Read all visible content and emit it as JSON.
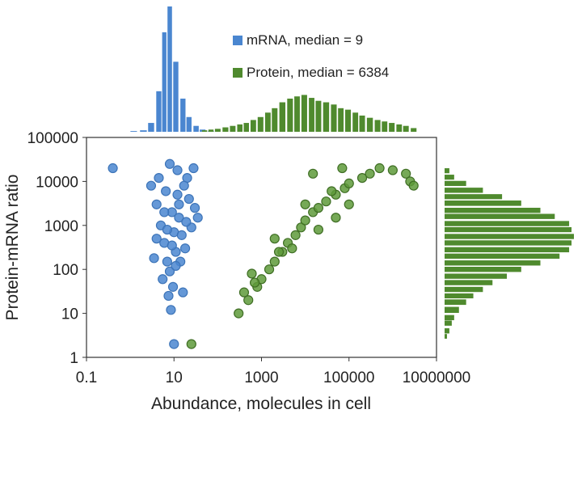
{
  "chart_data": {
    "type": "scatter",
    "xlabel": "Abundance, molecules in cell",
    "ylabel": "Protein-mRNA ratio",
    "xscale": "log",
    "yscale": "log",
    "xlim": [
      0.1,
      10000000
    ],
    "ylim": [
      1,
      100000
    ],
    "x_ticks": [
      "0.1",
      "10",
      "1000",
      "100000",
      "10000000"
    ],
    "y_ticks": [
      "1",
      "10",
      "100",
      "1000",
      "10000",
      "100000"
    ],
    "grid": false,
    "legend_position": "top-right of top histogram",
    "colors": {
      "mrna": "#4a86d0",
      "mrna_edge": "#3d74b8",
      "protein": "#5e9a3a",
      "protein_edge": "#3f6e24",
      "protein_hist": "#4f8a2e"
    },
    "series": [
      {
        "name": "mRNA, median = 9",
        "legend_label": "mRNA, median = 9",
        "median": 9,
        "scatter_points": [
          [
            0.4,
            20000
          ],
          [
            3,
            8000
          ],
          [
            4,
            3000
          ],
          [
            5,
            1000
          ],
          [
            6,
            400
          ],
          [
            7,
            150
          ],
          [
            8,
            90
          ],
          [
            9,
            2000
          ],
          [
            10,
            700
          ],
          [
            11,
            250
          ],
          [
            12,
            5000
          ],
          [
            13,
            1500
          ],
          [
            15,
            600
          ],
          [
            18,
            300
          ],
          [
            20,
            12000
          ],
          [
            22,
            4000
          ],
          [
            25,
            900
          ],
          [
            30,
            2500
          ],
          [
            4.5,
            12000
          ],
          [
            6.5,
            6000
          ],
          [
            7.5,
            25
          ],
          [
            8.5,
            12
          ],
          [
            9.5,
            40
          ],
          [
            5.5,
            60
          ],
          [
            3.5,
            180
          ],
          [
            4,
            500
          ],
          [
            14,
            150
          ],
          [
            16,
            30
          ],
          [
            28,
            20000
          ],
          [
            35,
            1500
          ],
          [
            10,
            2
          ],
          [
            8,
            25000
          ],
          [
            12,
            18000
          ],
          [
            17,
            8000
          ],
          [
            6,
            2000
          ],
          [
            9,
            350
          ],
          [
            11,
            120
          ],
          [
            7,
            800
          ],
          [
            13,
            3000
          ],
          [
            19,
            1200
          ]
        ],
        "histogram_x": {
          "bin_centers": [
            1.2,
            2,
            3,
            4.5,
            6,
            8,
            11,
            16,
            22,
            32,
            45,
            70
          ],
          "counts": [
            1,
            2,
            12,
            55,
            135,
            170,
            95,
            45,
            20,
            8,
            3,
            1
          ]
        }
      },
      {
        "name": "Protein, median = 6384",
        "legend_label": "Protein, median = 6384",
        "median": 6384,
        "scatter_points": [
          [
            300,
            10
          ],
          [
            500,
            20
          ],
          [
            800,
            40
          ],
          [
            1000,
            60
          ],
          [
            1500,
            100
          ],
          [
            2000,
            150
          ],
          [
            3000,
            250
          ],
          [
            4000,
            400
          ],
          [
            6000,
            600
          ],
          [
            8000,
            900
          ],
          [
            10000,
            1300
          ],
          [
            15000,
            2000
          ],
          [
            20000,
            2500
          ],
          [
            30000,
            3500
          ],
          [
            50000,
            5000
          ],
          [
            80000,
            7000
          ],
          [
            100000,
            9000
          ],
          [
            200000,
            12000
          ],
          [
            300000,
            15000
          ],
          [
            500000,
            20000
          ],
          [
            1000000,
            18000
          ],
          [
            2000000,
            15000
          ],
          [
            2500000,
            10000
          ],
          [
            3000000,
            8000
          ],
          [
            5000,
            300
          ],
          [
            20000,
            800
          ],
          [
            50000,
            1500
          ],
          [
            100000,
            3000
          ],
          [
            2000,
            500
          ],
          [
            10000,
            3000
          ],
          [
            400,
            30
          ],
          [
            600,
            80
          ],
          [
            700,
            50
          ],
          [
            2500,
            250
          ],
          [
            40000,
            6000
          ],
          [
            15000,
            15000
          ],
          [
            70000,
            20000
          ],
          [
            25,
            2
          ]
        ],
        "histogram_x": {
          "bin_centers": [
            50,
            70,
            100,
            150,
            220,
            320,
            450,
            650,
            950,
            1400,
            2000,
            3000,
            4500,
            6500,
            9500,
            14000,
            20000,
            30000,
            45000,
            65000,
            95000,
            140000,
            200000,
            300000,
            450000,
            650000,
            950000,
            1400000,
            2000000,
            3000000
          ],
          "counts": [
            2,
            3,
            4,
            6,
            8,
            10,
            12,
            16,
            20,
            26,
            32,
            40,
            45,
            48,
            50,
            46,
            42,
            40,
            37,
            32,
            30,
            26,
            22,
            19,
            16,
            14,
            12,
            10,
            8,
            5
          ]
        },
        "histogram_y": {
          "bin_centers": [
            3,
            4,
            6,
            8,
            12,
            18,
            25,
            35,
            50,
            70,
            100,
            140,
            200,
            280,
            400,
            560,
            800,
            1100,
            1600,
            2200,
            3200,
            4500,
            6300,
            9000,
            12500,
            17500
          ],
          "counts": [
            1,
            2,
            3,
            4,
            6,
            9,
            12,
            16,
            20,
            26,
            32,
            40,
            48,
            52,
            53,
            54,
            53,
            52,
            46,
            40,
            32,
            24,
            16,
            9,
            4,
            2
          ]
        }
      }
    ]
  }
}
